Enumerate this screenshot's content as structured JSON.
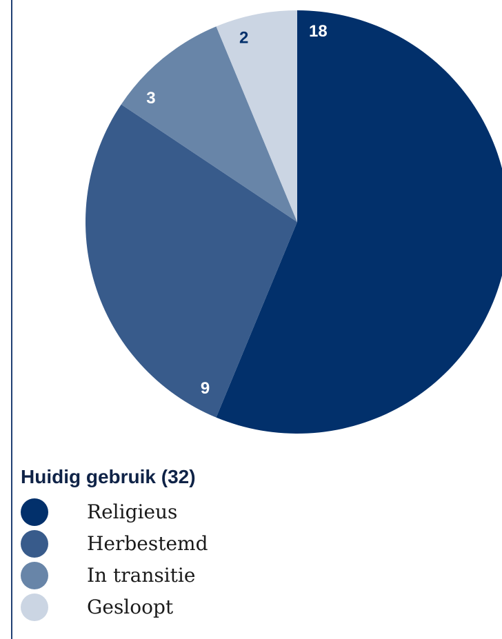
{
  "chart_data": {
    "type": "pie",
    "title": "Huidig gebruik (32)",
    "total": 32,
    "slices": [
      {
        "label": "Religieus",
        "value": 18,
        "color": "#02306b"
      },
      {
        "label": "Herbestemd",
        "value": 9,
        "color": "#385b8b"
      },
      {
        "label": "In transitie",
        "value": 3,
        "color": "#6885a8"
      },
      {
        "label": "Gesloopt",
        "value": 2,
        "color": "#cbd5e3"
      }
    ],
    "data_label_colors": [
      "#ffffff",
      "#ffffff",
      "#ffffff",
      "#02306b"
    ],
    "legend_position": "bottom-left"
  }
}
